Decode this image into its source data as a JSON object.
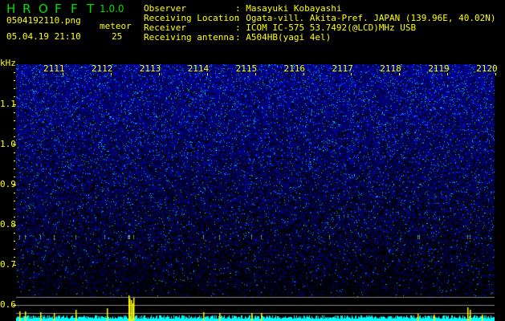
{
  "app": {
    "title_letters": [
      "H",
      "R",
      "O",
      "F",
      "F",
      "T"
    ],
    "version": "1.0.0"
  },
  "file": {
    "name": "0504192110.png",
    "datetime": "05.04.19 21:10"
  },
  "meteor": {
    "label": "meteor",
    "count": "25"
  },
  "info": [
    {
      "label": "Observer",
      "value": "Masayuki Kobayashi"
    },
    {
      "label": "Receiving Location",
      "value": "Ogata-vill. Akita-Pref. JAPAN (139.96E, 40.02N)"
    },
    {
      "label": "Receiver",
      "value": "ICOM IC-575 53.7492(@LCD)MHz USB"
    },
    {
      "label": "Receiving antenna",
      "value": "A504HB(yagi 4el)"
    }
  ],
  "axis": {
    "y_unit": "kHz",
    "y_ticks": [
      "1.1",
      "1.0",
      "0.9",
      "0.8",
      "0.7",
      "0.6"
    ],
    "x_ticks": [
      "2111",
      "2112",
      "2113",
      "2114",
      "2115",
      "2116",
      "2117",
      "2118",
      "2119",
      "2120"
    ]
  },
  "colors": {
    "text": "#ffff00",
    "title": "#00e000",
    "histogram": "#00ffff",
    "spike": "#ffff00",
    "background": "#000000"
  }
}
